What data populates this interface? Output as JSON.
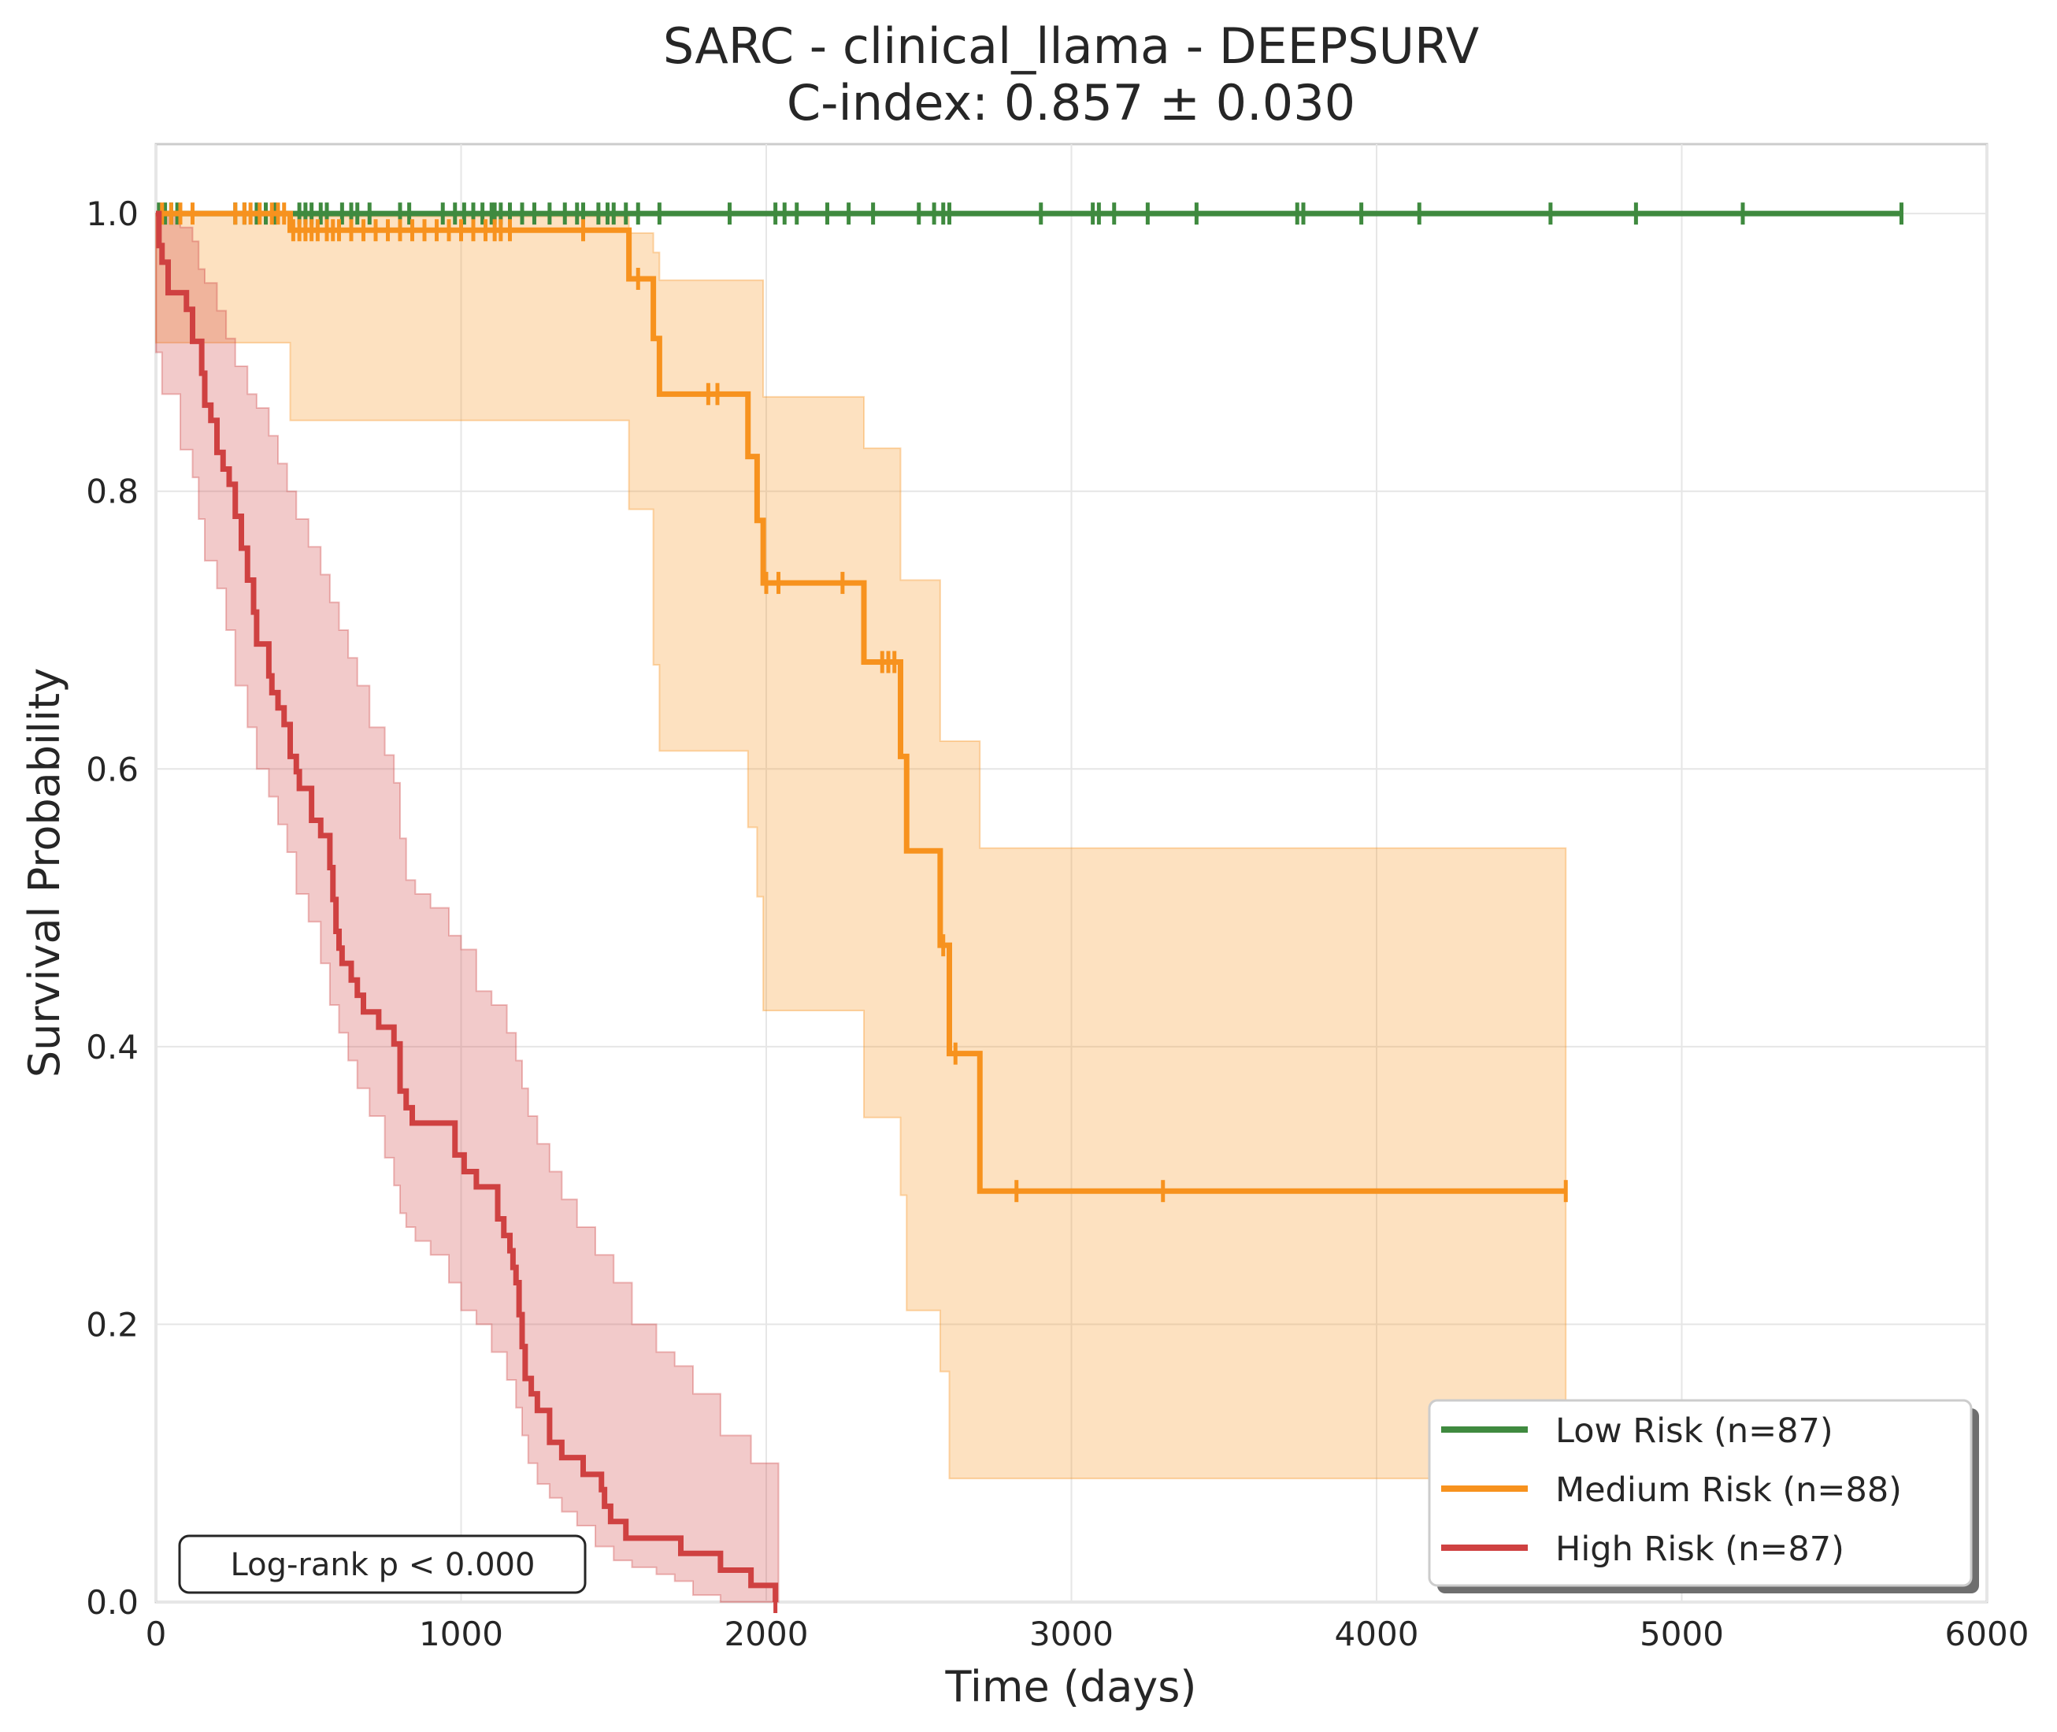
{
  "chart_data": {
    "type": "line",
    "title": "SARC - clinical_llama - DEEPSURV",
    "subtitle": "C-index: 0.857 ± 0.030",
    "xlabel": "Time (days)",
    "ylabel": "Survival Probability",
    "xlim": [
      0,
      6000
    ],
    "ylim": [
      0,
      1.05
    ],
    "x_ticks": [
      0,
      1000,
      2000,
      3000,
      4000,
      5000,
      6000
    ],
    "y_ticks": [
      0.0,
      0.2,
      0.4,
      0.6,
      0.8,
      1.0
    ],
    "x_tick_labels": [
      "0",
      "1000",
      "2000",
      "3000",
      "4000",
      "5000",
      "6000"
    ],
    "y_tick_labels": [
      "0.0",
      "0.2",
      "0.4",
      "0.6",
      "0.8",
      "1.0"
    ],
    "grid": true,
    "legend_position": "lower-right",
    "annotation": "Log-rank p < 0.000",
    "series": [
      {
        "name": "Low Risk (n=87)",
        "color": "#3f8a3f",
        "steps": [
          [
            0,
            1.0
          ],
          [
            5720,
            1.0
          ]
        ],
        "ci": [
          [
            0,
            1.0,
            1.0
          ],
          [
            5720,
            1.0,
            1.0
          ]
        ],
        "censored": [
          10,
          30,
          50,
          70,
          260,
          290,
          330,
          360,
          390,
          470,
          490,
          510,
          540,
          560,
          610,
          640,
          660,
          700,
          800,
          830,
          940,
          980,
          1010,
          1040,
          1070,
          1100,
          1110,
          1130,
          1160,
          1200,
          1240,
          1290,
          1340,
          1380,
          1400,
          1450,
          1480,
          1500,
          1540,
          1580,
          1650,
          1880,
          2030,
          2060,
          2100,
          2200,
          2270,
          2350,
          2500,
          2550,
          2580,
          2600,
          2900,
          3070,
          3090,
          3140,
          3250,
          3410,
          3740,
          3760,
          3950,
          4140,
          4570,
          4850,
          5200,
          5720
        ]
      },
      {
        "name": "Medium Risk (n=88)",
        "color": "#f7921e",
        "steps": [
          [
            0,
            1.0
          ],
          [
            440,
            0.988
          ],
          [
            1550,
            0.953
          ],
          [
            1630,
            0.91
          ],
          [
            1650,
            0.87
          ],
          [
            1940,
            0.825
          ],
          [
            1970,
            0.779
          ],
          [
            1990,
            0.734
          ],
          [
            2320,
            0.677
          ],
          [
            2440,
            0.609
          ],
          [
            2460,
            0.541
          ],
          [
            2570,
            0.473
          ],
          [
            2600,
            0.395
          ],
          [
            2700,
            0.296
          ],
          [
            4620,
            0.296
          ]
        ],
        "ci": [
          [
            0,
            1.0,
            1.0
          ],
          [
            440,
            0.907,
            0.998
          ],
          [
            1550,
            0.851,
            0.986
          ],
          [
            1630,
            0.787,
            0.972
          ],
          [
            1650,
            0.675,
            0.952
          ],
          [
            1940,
            0.613,
            0.952
          ],
          [
            1970,
            0.558,
            0.952
          ],
          [
            1990,
            0.508,
            0.868
          ],
          [
            2320,
            0.426,
            0.831
          ],
          [
            2440,
            0.349,
            0.736
          ],
          [
            2460,
            0.293,
            0.736
          ],
          [
            2570,
            0.21,
            0.62
          ],
          [
            2600,
            0.166,
            0.62
          ],
          [
            2700,
            0.089,
            0.543
          ],
          [
            4620,
            0.089,
            0.543
          ]
        ],
        "censored": [
          20,
          50,
          80,
          120,
          260,
          290,
          310,
          340,
          380,
          400,
          420,
          450,
          470,
          490,
          510,
          530,
          560,
          580,
          600,
          640,
          680,
          720,
          760,
          800,
          840,
          880,
          920,
          960,
          1000,
          1040,
          1080,
          1110,
          1130,
          1160,
          1400,
          1580,
          1810,
          1840,
          2000,
          2040,
          2250,
          2380,
          2400,
          2420,
          2580,
          2620,
          2820,
          3300,
          4620
        ]
      },
      {
        "name": "High Risk (n=87)",
        "color": "#cf4141",
        "steps": [
          [
            0,
            1.0
          ],
          [
            10,
            0.977
          ],
          [
            20,
            0.965
          ],
          [
            40,
            0.943
          ],
          [
            100,
            0.931
          ],
          [
            120,
            0.908
          ],
          [
            150,
            0.885
          ],
          [
            160,
            0.862
          ],
          [
            180,
            0.851
          ],
          [
            200,
            0.828
          ],
          [
            220,
            0.816
          ],
          [
            240,
            0.805
          ],
          [
            260,
            0.782
          ],
          [
            280,
            0.759
          ],
          [
            300,
            0.736
          ],
          [
            320,
            0.713
          ],
          [
            330,
            0.69
          ],
          [
            370,
            0.667
          ],
          [
            380,
            0.655
          ],
          [
            400,
            0.644
          ],
          [
            420,
            0.632
          ],
          [
            440,
            0.609
          ],
          [
            460,
            0.598
          ],
          [
            470,
            0.586
          ],
          [
            510,
            0.563
          ],
          [
            540,
            0.552
          ],
          [
            570,
            0.529
          ],
          [
            580,
            0.506
          ],
          [
            590,
            0.483
          ],
          [
            600,
            0.471
          ],
          [
            610,
            0.46
          ],
          [
            640,
            0.448
          ],
          [
            660,
            0.437
          ],
          [
            680,
            0.425
          ],
          [
            730,
            0.414
          ],
          [
            780,
            0.402
          ],
          [
            800,
            0.368
          ],
          [
            820,
            0.356
          ],
          [
            840,
            0.345
          ],
          [
            980,
            0.322
          ],
          [
            1010,
            0.31
          ],
          [
            1050,
            0.299
          ],
          [
            1120,
            0.276
          ],
          [
            1140,
            0.264
          ],
          [
            1160,
            0.253
          ],
          [
            1170,
            0.241
          ],
          [
            1180,
            0.23
          ],
          [
            1190,
            0.207
          ],
          [
            1200,
            0.184
          ],
          [
            1210,
            0.161
          ],
          [
            1230,
            0.15
          ],
          [
            1250,
            0.138
          ],
          [
            1290,
            0.115
          ],
          [
            1330,
            0.104
          ],
          [
            1400,
            0.092
          ],
          [
            1460,
            0.081
          ],
          [
            1470,
            0.069
          ],
          [
            1490,
            0.058
          ],
          [
            1540,
            0.046
          ],
          [
            1720,
            0.035
          ],
          [
            1850,
            0.023
          ],
          [
            1950,
            0.012
          ],
          [
            2030,
            0.0
          ]
        ],
        "ci": [
          [
            0,
            1.0,
            1.0
          ],
          [
            20,
            0.9,
            1.0
          ],
          [
            80,
            0.87,
            0.99
          ],
          [
            120,
            0.83,
            0.98
          ],
          [
            140,
            0.81,
            0.96
          ],
          [
            160,
            0.78,
            0.95
          ],
          [
            200,
            0.75,
            0.93
          ],
          [
            230,
            0.73,
            0.91
          ],
          [
            260,
            0.7,
            0.89
          ],
          [
            300,
            0.66,
            0.87
          ],
          [
            330,
            0.63,
            0.86
          ],
          [
            370,
            0.6,
            0.84
          ],
          [
            400,
            0.58,
            0.82
          ],
          [
            430,
            0.56,
            0.8
          ],
          [
            460,
            0.54,
            0.78
          ],
          [
            500,
            0.51,
            0.76
          ],
          [
            540,
            0.49,
            0.74
          ],
          [
            570,
            0.46,
            0.72
          ],
          [
            600,
            0.43,
            0.7
          ],
          [
            630,
            0.41,
            0.68
          ],
          [
            660,
            0.39,
            0.66
          ],
          [
            700,
            0.37,
            0.63
          ],
          [
            750,
            0.35,
            0.61
          ],
          [
            780,
            0.32,
            0.59
          ],
          [
            800,
            0.3,
            0.55
          ],
          [
            820,
            0.28,
            0.52
          ],
          [
            850,
            0.27,
            0.51
          ],
          [
            900,
            0.26,
            0.5
          ],
          [
            960,
            0.25,
            0.48
          ],
          [
            1000,
            0.23,
            0.47
          ],
          [
            1050,
            0.21,
            0.44
          ],
          [
            1100,
            0.2,
            0.43
          ],
          [
            1150,
            0.18,
            0.41
          ],
          [
            1180,
            0.16,
            0.39
          ],
          [
            1200,
            0.14,
            0.37
          ],
          [
            1220,
            0.12,
            0.35
          ],
          [
            1250,
            0.1,
            0.33
          ],
          [
            1290,
            0.085,
            0.31
          ],
          [
            1330,
            0.075,
            0.29
          ],
          [
            1380,
            0.065,
            0.27
          ],
          [
            1440,
            0.055,
            0.25
          ],
          [
            1500,
            0.04,
            0.23
          ],
          [
            1560,
            0.03,
            0.2
          ],
          [
            1640,
            0.025,
            0.18
          ],
          [
            1700,
            0.02,
            0.17
          ],
          [
            1760,
            0.015,
            0.15
          ],
          [
            1850,
            0.005,
            0.12
          ],
          [
            1950,
            0.0,
            0.1
          ],
          [
            2040,
            0.0,
            0.09
          ]
        ],
        "censored": [
          2030
        ]
      }
    ]
  }
}
